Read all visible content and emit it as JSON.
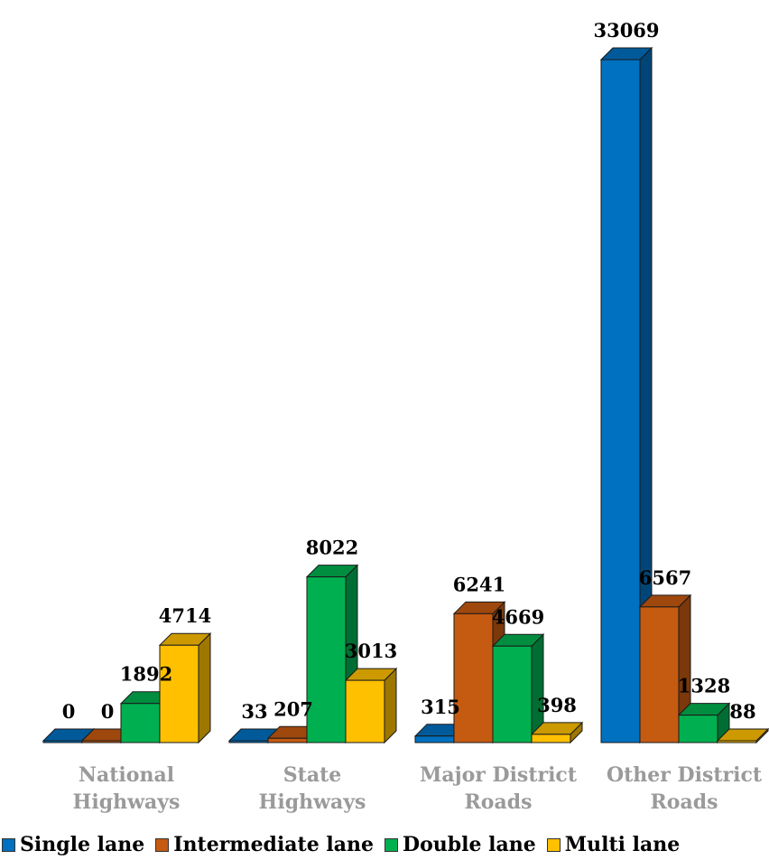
{
  "chart_data": {
    "type": "bar",
    "title": "",
    "xlabel": "",
    "ylabel": "",
    "ylim": [
      0,
      33069
    ],
    "grid": false,
    "legend_position": "bottom",
    "categories": [
      [
        "National",
        "Highways"
      ],
      [
        "State",
        "Highways"
      ],
      [
        "Major District",
        "Roads"
      ],
      [
        "Other District",
        "Roads"
      ]
    ],
    "series": [
      {
        "name": "Single lane",
        "color": "#0070C0",
        "values": [
          0,
          33,
          315,
          33069
        ],
        "labels": [
          "0",
          "33",
          "315",
          "33069"
        ]
      },
      {
        "name": "Intermediate lane",
        "color": "#C55A11",
        "values": [
          0,
          207,
          6241,
          6567
        ],
        "labels": [
          "0",
          "207",
          "6241",
          "6567"
        ]
      },
      {
        "name": "Double lane",
        "color": "#00B050",
        "values": [
          1892,
          8022,
          4669,
          1328
        ],
        "labels": [
          "1892",
          "8022",
          "4669",
          "1328"
        ]
      },
      {
        "name": "Multi lane",
        "color": "#FFC000",
        "values": [
          4714,
          3013,
          398,
          88
        ],
        "labels": [
          "4714",
          "3013",
          "398",
          "88"
        ]
      }
    ]
  }
}
